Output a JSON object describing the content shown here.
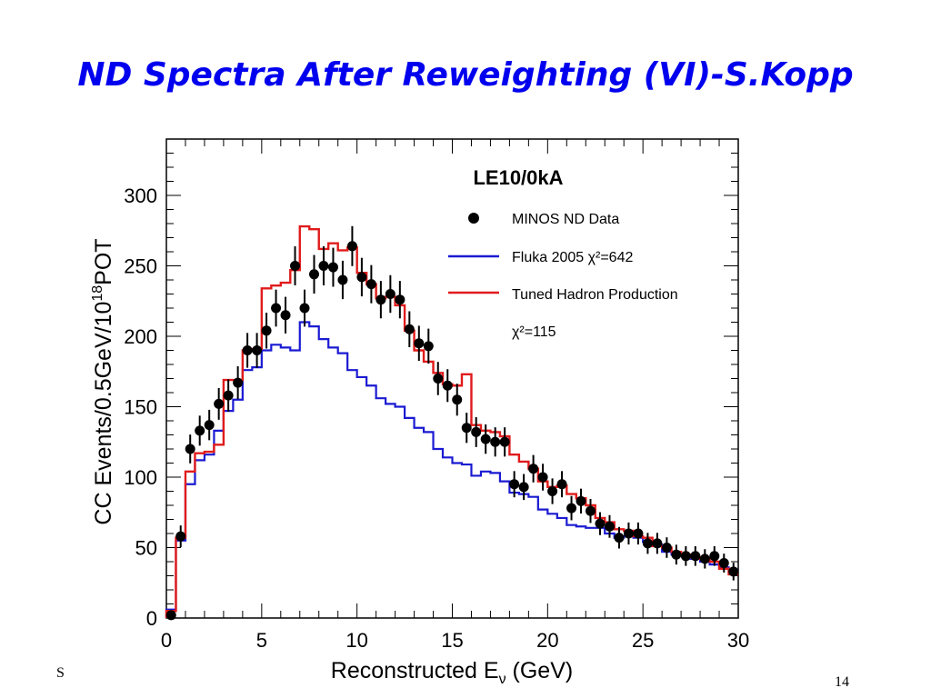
{
  "slide": {
    "title": "ND Spectra After Reweighting (VI)-S.Kopp",
    "footer_left": "S",
    "page_number": "14"
  },
  "chart_data": {
    "type": "line",
    "title": "LE10/0kA",
    "xlabel": "Reconstructed E",
    "xlabel_sub": "ν",
    "xlabel_unit": " (GeV)",
    "ylabel": "CC Events/0.5GeV/10",
    "ylabel_sup": "18",
    "ylabel_suffix": "POT",
    "xlim": [
      0,
      30
    ],
    "ylim": [
      0,
      340
    ],
    "xticks": [
      0,
      5,
      10,
      15,
      20,
      25,
      30
    ],
    "yticks": [
      0,
      50,
      100,
      150,
      200,
      250,
      300
    ],
    "bin_width": 0.5,
    "legend_position": "top-right",
    "legend": {
      "data": "MINOS ND Data",
      "fluka": "Fluka 2005 χ²=642",
      "tuned": "Tuned Hadron Production",
      "tuned_chi2": "χ²=115"
    },
    "colors": {
      "data": "#000000",
      "fluka": "#1a1ad2",
      "tuned": "#e01b1b"
    },
    "series": [
      {
        "name": "MINOS ND Data",
        "kind": "points",
        "x": [
          0.25,
          0.75,
          1.25,
          1.75,
          2.25,
          2.75,
          3.25,
          3.75,
          4.25,
          4.75,
          5.25,
          5.75,
          6.25,
          6.75,
          7.25,
          7.75,
          8.25,
          8.75,
          9.25,
          9.75,
          10.25,
          10.75,
          11.25,
          11.75,
          12.25,
          12.75,
          13.25,
          13.75,
          14.25,
          14.75,
          15.25,
          15.75,
          16.25,
          16.75,
          17.25,
          17.75,
          18.25,
          18.75,
          19.25,
          19.75,
          20.25,
          20.75,
          21.25,
          21.75,
          22.25,
          22.75,
          23.25,
          23.75,
          24.25,
          24.75,
          25.25,
          25.75,
          26.25,
          26.75,
          27.25,
          27.75,
          28.25,
          28.75,
          29.25,
          29.75
        ],
        "y": [
          2,
          58,
          120,
          133,
          137,
          152,
          158,
          167,
          190,
          190,
          204,
          220,
          215,
          250,
          220,
          244,
          250,
          249,
          240,
          264,
          242,
          237,
          226,
          230,
          226,
          205,
          195,
          193,
          170,
          165,
          155,
          135,
          132,
          127,
          125,
          125,
          95,
          93,
          106,
          100,
          90,
          95,
          78,
          83,
          76,
          67,
          65,
          57,
          60,
          60,
          53,
          53,
          50,
          45,
          44,
          44,
          42,
          44,
          39,
          33
        ]
      },
      {
        "name": "Fluka 2005",
        "kind": "step",
        "values": [
          6,
          55,
          95,
          112,
          116,
          133,
          147,
          155,
          176,
          178,
          190,
          194,
          192,
          190,
          210,
          207,
          198,
          192,
          188,
          176,
          171,
          165,
          156,
          152,
          150,
          142,
          135,
          132,
          120,
          114,
          110,
          109,
          101,
          104,
          103,
          97,
          89,
          88,
          86,
          77,
          74,
          71,
          66,
          65,
          64,
          64,
          60,
          57,
          58,
          57,
          54,
          52,
          47,
          45,
          44,
          42,
          40,
          38,
          36,
          34
        ]
      },
      {
        "name": "Tuned Hadron Production",
        "kind": "step",
        "values": [
          5,
          57,
          104,
          117,
          118,
          123,
          169,
          169,
          190,
          191,
          234,
          236,
          238,
          247,
          278,
          276,
          262,
          266,
          261,
          263,
          245,
          237,
          227,
          228,
          222,
          204,
          190,
          182,
          174,
          166,
          165,
          173,
          137,
          133,
          132,
          129,
          116,
          111,
          106,
          97,
          93,
          94,
          88,
          85,
          80,
          71,
          68,
          63,
          62,
          58,
          57,
          51,
          50,
          47,
          45,
          43,
          42,
          40,
          35,
          31
        ]
      }
    ]
  }
}
